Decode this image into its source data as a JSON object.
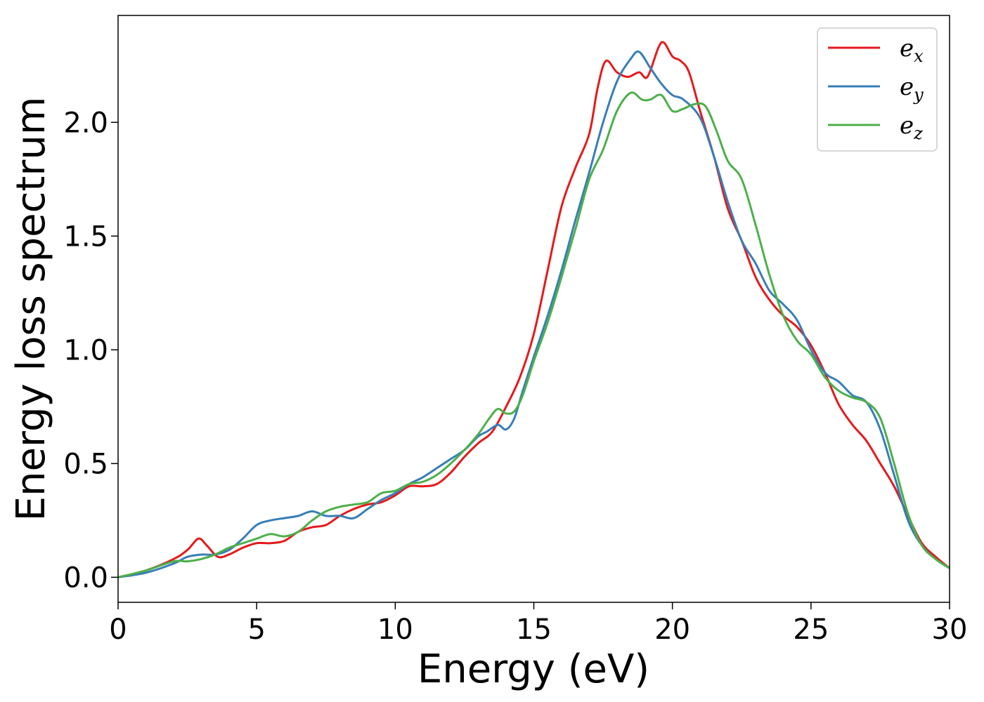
{
  "chart_data": {
    "type": "line",
    "xlabel": "Energy (eV)",
    "ylabel": "Energy loss spectrum",
    "xlim": [
      0,
      30
    ],
    "ylim": [
      -0.11,
      2.47
    ],
    "xticks": [
      0,
      5,
      10,
      15,
      20,
      25,
      30
    ],
    "xtick_labels": [
      "0",
      "5",
      "10",
      "15",
      "20",
      "25",
      "30"
    ],
    "yticks": [
      0.0,
      0.5,
      1.0,
      1.5,
      2.0
    ],
    "ytick_labels": [
      "0.0",
      "0.5",
      "1.0",
      "1.5",
      "2.0"
    ],
    "grid": false,
    "legend_position": "top-right",
    "series": [
      {
        "name": "e",
        "name_sub": "x",
        "color": "#e41a1c",
        "x": [
          0,
          1,
          2,
          2.5,
          2.9,
          3.2,
          3.6,
          4,
          4.5,
          5,
          5.5,
          6,
          6.5,
          7,
          7.5,
          8,
          8.5,
          9,
          9.5,
          10,
          10.5,
          11,
          11.5,
          12,
          12.5,
          13,
          13.5,
          14,
          14.5,
          15,
          15.5,
          16,
          16.5,
          17,
          17.3,
          17.6,
          18,
          18.4,
          18.8,
          19.1,
          19.5,
          19.7,
          20,
          20.3,
          20.6,
          21,
          21.5,
          22,
          22.5,
          23,
          23.5,
          24,
          24.5,
          25,
          25.5,
          26,
          26.5,
          27,
          27.5,
          28,
          28.5,
          29,
          29.5,
          30
        ],
        "y": [
          0.0,
          0.03,
          0.08,
          0.12,
          0.17,
          0.14,
          0.09,
          0.1,
          0.13,
          0.15,
          0.15,
          0.16,
          0.2,
          0.22,
          0.23,
          0.27,
          0.3,
          0.32,
          0.33,
          0.36,
          0.4,
          0.4,
          0.41,
          0.46,
          0.53,
          0.59,
          0.64,
          0.75,
          0.88,
          1.07,
          1.35,
          1.63,
          1.8,
          1.95,
          2.15,
          2.27,
          2.22,
          2.2,
          2.22,
          2.2,
          2.33,
          2.35,
          2.29,
          2.27,
          2.22,
          2.05,
          1.85,
          1.62,
          1.48,
          1.32,
          1.22,
          1.15,
          1.1,
          1.02,
          0.9,
          0.76,
          0.67,
          0.6,
          0.5,
          0.4,
          0.27,
          0.15,
          0.09,
          0.04
        ]
      },
      {
        "name": "e",
        "name_sub": "y",
        "color": "#377eb8",
        "x": [
          0,
          1,
          2,
          2.5,
          3,
          3.5,
          4,
          4.5,
          5,
          5.5,
          6,
          6.5,
          7,
          7.5,
          8,
          8.5,
          9,
          9.5,
          10,
          10.5,
          11,
          11.5,
          12,
          12.5,
          13,
          13.3,
          13.7,
          14,
          14.3,
          14.6,
          15,
          15.5,
          16,
          16.5,
          17,
          17.5,
          18,
          18.5,
          18.8,
          19.2,
          19.6,
          20,
          20.4,
          21,
          21.5,
          22,
          22.5,
          23,
          23.5,
          24,
          24.5,
          25,
          25.5,
          26,
          26.5,
          27,
          27.5,
          28,
          28.5,
          29,
          29.5,
          30
        ],
        "y": [
          0.0,
          0.02,
          0.06,
          0.09,
          0.1,
          0.1,
          0.12,
          0.17,
          0.23,
          0.25,
          0.26,
          0.27,
          0.29,
          0.27,
          0.27,
          0.26,
          0.3,
          0.34,
          0.37,
          0.41,
          0.44,
          0.48,
          0.52,
          0.56,
          0.62,
          0.64,
          0.67,
          0.65,
          0.7,
          0.82,
          0.97,
          1.15,
          1.35,
          1.57,
          1.78,
          2.0,
          2.18,
          2.28,
          2.31,
          2.24,
          2.17,
          2.12,
          2.1,
          2.02,
          1.85,
          1.65,
          1.48,
          1.38,
          1.26,
          1.2,
          1.13,
          1.0,
          0.9,
          0.86,
          0.8,
          0.77,
          0.65,
          0.45,
          0.25,
          0.14,
          0.08,
          0.04
        ]
      },
      {
        "name": "e",
        "name_sub": "z",
        "color": "#4daf4a",
        "x": [
          0,
          1,
          2,
          2.5,
          3,
          3.5,
          4,
          4.5,
          5,
          5.5,
          6,
          6.5,
          7,
          7.5,
          8,
          8.5,
          9,
          9.5,
          10,
          10.5,
          11,
          11.5,
          12,
          12.5,
          13,
          13.4,
          13.7,
          14,
          14.3,
          14.6,
          15,
          15.5,
          16,
          16.5,
          17,
          17.5,
          18,
          18.5,
          18.9,
          19.2,
          19.6,
          20,
          20.4,
          20.8,
          21.2,
          21.6,
          22,
          22.5,
          23,
          23.5,
          24,
          24.5,
          25,
          25.5,
          26,
          26.5,
          27,
          27.5,
          28,
          28.5,
          29,
          29.5,
          30
        ],
        "y": [
          0.0,
          0.03,
          0.07,
          0.07,
          0.08,
          0.1,
          0.13,
          0.15,
          0.17,
          0.19,
          0.18,
          0.2,
          0.25,
          0.29,
          0.31,
          0.32,
          0.33,
          0.37,
          0.38,
          0.41,
          0.42,
          0.45,
          0.5,
          0.56,
          0.63,
          0.7,
          0.74,
          0.72,
          0.73,
          0.8,
          0.95,
          1.12,
          1.32,
          1.53,
          1.75,
          1.88,
          2.05,
          2.13,
          2.1,
          2.1,
          2.12,
          2.05,
          2.06,
          2.08,
          2.07,
          1.96,
          1.83,
          1.75,
          1.55,
          1.33,
          1.15,
          1.04,
          0.98,
          0.88,
          0.82,
          0.79,
          0.77,
          0.7,
          0.5,
          0.28,
          0.14,
          0.08,
          0.04
        ]
      }
    ]
  }
}
